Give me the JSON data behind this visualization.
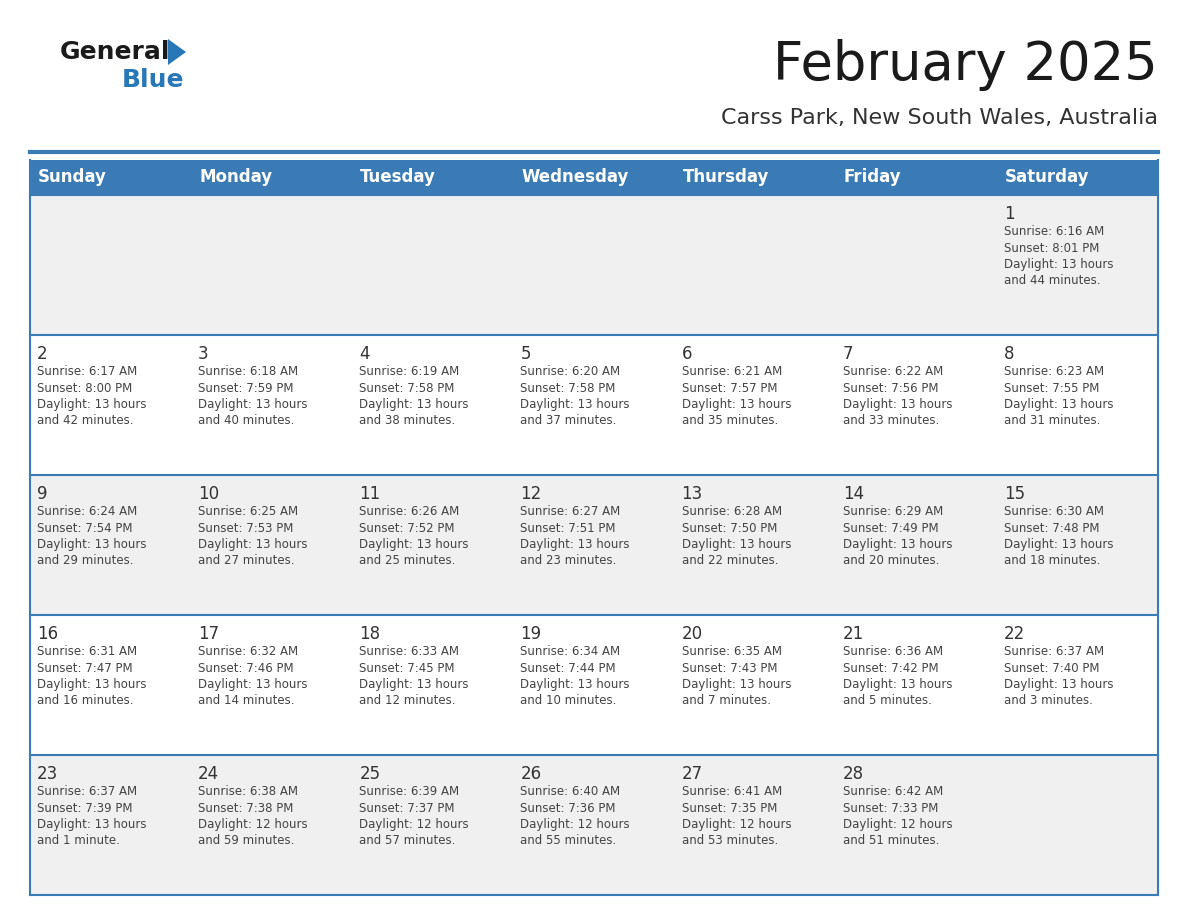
{
  "title": "February 2025",
  "subtitle": "Carss Park, New South Wales, Australia",
  "days_of_week": [
    "Sunday",
    "Monday",
    "Tuesday",
    "Wednesday",
    "Thursday",
    "Friday",
    "Saturday"
  ],
  "header_bg": "#3a7ab5",
  "header_text": "#ffffff",
  "row_bg_light": "#f0f0f0",
  "row_bg_white": "#ffffff",
  "cell_border": "#3a7ab5",
  "day_num_color": "#333333",
  "text_color": "#444444",
  "title_color": "#1a1a1a",
  "subtitle_color": "#333333",
  "logo_general_color": "#1a1a1a",
  "logo_blue_color": "#2878b8",
  "calendar_data": [
    [
      null,
      null,
      null,
      null,
      null,
      null,
      {
        "day": "1",
        "sunrise": "6:16 AM",
        "sunset": "8:01 PM",
        "daylight_line1": "Daylight: 13 hours",
        "daylight_line2": "and 44 minutes."
      }
    ],
    [
      {
        "day": "2",
        "sunrise": "6:17 AM",
        "sunset": "8:00 PM",
        "daylight_line1": "Daylight: 13 hours",
        "daylight_line2": "and 42 minutes."
      },
      {
        "day": "3",
        "sunrise": "6:18 AM",
        "sunset": "7:59 PM",
        "daylight_line1": "Daylight: 13 hours",
        "daylight_line2": "and 40 minutes."
      },
      {
        "day": "4",
        "sunrise": "6:19 AM",
        "sunset": "7:58 PM",
        "daylight_line1": "Daylight: 13 hours",
        "daylight_line2": "and 38 minutes."
      },
      {
        "day": "5",
        "sunrise": "6:20 AM",
        "sunset": "7:58 PM",
        "daylight_line1": "Daylight: 13 hours",
        "daylight_line2": "and 37 minutes."
      },
      {
        "day": "6",
        "sunrise": "6:21 AM",
        "sunset": "7:57 PM",
        "daylight_line1": "Daylight: 13 hours",
        "daylight_line2": "and 35 minutes."
      },
      {
        "day": "7",
        "sunrise": "6:22 AM",
        "sunset": "7:56 PM",
        "daylight_line1": "Daylight: 13 hours",
        "daylight_line2": "and 33 minutes."
      },
      {
        "day": "8",
        "sunrise": "6:23 AM",
        "sunset": "7:55 PM",
        "daylight_line1": "Daylight: 13 hours",
        "daylight_line2": "and 31 minutes."
      }
    ],
    [
      {
        "day": "9",
        "sunrise": "6:24 AM",
        "sunset": "7:54 PM",
        "daylight_line1": "Daylight: 13 hours",
        "daylight_line2": "and 29 minutes."
      },
      {
        "day": "10",
        "sunrise": "6:25 AM",
        "sunset": "7:53 PM",
        "daylight_line1": "Daylight: 13 hours",
        "daylight_line2": "and 27 minutes."
      },
      {
        "day": "11",
        "sunrise": "6:26 AM",
        "sunset": "7:52 PM",
        "daylight_line1": "Daylight: 13 hours",
        "daylight_line2": "and 25 minutes."
      },
      {
        "day": "12",
        "sunrise": "6:27 AM",
        "sunset": "7:51 PM",
        "daylight_line1": "Daylight: 13 hours",
        "daylight_line2": "and 23 minutes."
      },
      {
        "day": "13",
        "sunrise": "6:28 AM",
        "sunset": "7:50 PM",
        "daylight_line1": "Daylight: 13 hours",
        "daylight_line2": "and 22 minutes."
      },
      {
        "day": "14",
        "sunrise": "6:29 AM",
        "sunset": "7:49 PM",
        "daylight_line1": "Daylight: 13 hours",
        "daylight_line2": "and 20 minutes."
      },
      {
        "day": "15",
        "sunrise": "6:30 AM",
        "sunset": "7:48 PM",
        "daylight_line1": "Daylight: 13 hours",
        "daylight_line2": "and 18 minutes."
      }
    ],
    [
      {
        "day": "16",
        "sunrise": "6:31 AM",
        "sunset": "7:47 PM",
        "daylight_line1": "Daylight: 13 hours",
        "daylight_line2": "and 16 minutes."
      },
      {
        "day": "17",
        "sunrise": "6:32 AM",
        "sunset": "7:46 PM",
        "daylight_line1": "Daylight: 13 hours",
        "daylight_line2": "and 14 minutes."
      },
      {
        "day": "18",
        "sunrise": "6:33 AM",
        "sunset": "7:45 PM",
        "daylight_line1": "Daylight: 13 hours",
        "daylight_line2": "and 12 minutes."
      },
      {
        "day": "19",
        "sunrise": "6:34 AM",
        "sunset": "7:44 PM",
        "daylight_line1": "Daylight: 13 hours",
        "daylight_line2": "and 10 minutes."
      },
      {
        "day": "20",
        "sunrise": "6:35 AM",
        "sunset": "7:43 PM",
        "daylight_line1": "Daylight: 13 hours",
        "daylight_line2": "and 7 minutes."
      },
      {
        "day": "21",
        "sunrise": "6:36 AM",
        "sunset": "7:42 PM",
        "daylight_line1": "Daylight: 13 hours",
        "daylight_line2": "and 5 minutes."
      },
      {
        "day": "22",
        "sunrise": "6:37 AM",
        "sunset": "7:40 PM",
        "daylight_line1": "Daylight: 13 hours",
        "daylight_line2": "and 3 minutes."
      }
    ],
    [
      {
        "day": "23",
        "sunrise": "6:37 AM",
        "sunset": "7:39 PM",
        "daylight_line1": "Daylight: 13 hours",
        "daylight_line2": "and 1 minute."
      },
      {
        "day": "24",
        "sunrise": "6:38 AM",
        "sunset": "7:38 PM",
        "daylight_line1": "Daylight: 12 hours",
        "daylight_line2": "and 59 minutes."
      },
      {
        "day": "25",
        "sunrise": "6:39 AM",
        "sunset": "7:37 PM",
        "daylight_line1": "Daylight: 12 hours",
        "daylight_line2": "and 57 minutes."
      },
      {
        "day": "26",
        "sunrise": "6:40 AM",
        "sunset": "7:36 PM",
        "daylight_line1": "Daylight: 12 hours",
        "daylight_line2": "and 55 minutes."
      },
      {
        "day": "27",
        "sunrise": "6:41 AM",
        "sunset": "7:35 PM",
        "daylight_line1": "Daylight: 12 hours",
        "daylight_line2": "and 53 minutes."
      },
      {
        "day": "28",
        "sunrise": "6:42 AM",
        "sunset": "7:33 PM",
        "daylight_line1": "Daylight: 12 hours",
        "daylight_line2": "and 51 minutes."
      },
      null
    ]
  ]
}
